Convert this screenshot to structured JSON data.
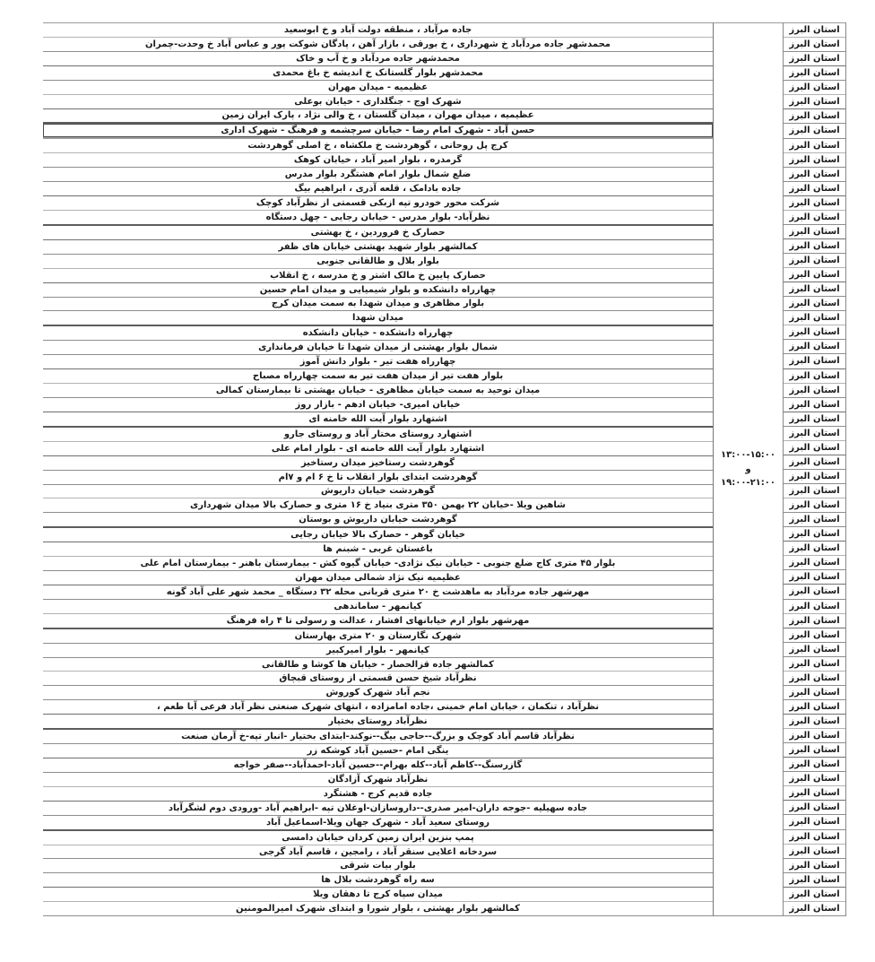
{
  "colors": {
    "text": "#1a1a1a",
    "grid": "#8d8d8d",
    "selection_border": "#4c4c4c"
  },
  "table": {
    "province_label": "استان البرز",
    "time": {
      "line1": "۱۳:۰۰-۱۵:۰۰",
      "line2": "و",
      "line3": "۱۹:۰۰-۲۱:۰۰"
    },
    "selected_row_index": 7,
    "rows": [
      "جاده مرآباد ، منطقه دولت آباد و خ ابوسعید",
      "محمدشهر جاده مردآباد خ شهرداری ، خ بورقی ، بازار آهن ، پادگان شوکت پور و عباس آباد خ وحدت-چمران",
      "محمدشهر جاده مردآباد و خ آب و خاک",
      "محمدشهر بلوار گلستانک خ اندیشه خ باغ محمدی",
      "عظیمیه - میدان مهران",
      "شهرک اوج - جنگلداری - خیابان بوعلی",
      "عظیمیه ، میدان مهران ، میدان گلستان ، خ والی نژاد ، پارک ایران زمین",
      "حسن آباد - شهرک امام رضا - خیابان سرچشمه و فرهنگ - شهرک اداری",
      "کرج پل روحانی ، گوهردشت خ ملکشاه ، خ اصلی گوهردشت",
      "گرمدره ، بلوار امیر آباد ، خیابان کوهک",
      "ضلع شمال بلوار امام هشتگرد بلوار مدرس",
      "جاده بادامک ، قلعه آذری ، ابراهیم بیگ",
      "شرکت محور خودرو تپه ازبکی قسمتی از نظرآباد کوچک",
      "نظرآباد- بلوار مدرس - خیابان رجایی - چهل دستگاه",
      "حصارک خ فروردین ، خ بهشتی",
      "کمالشهر بلوار شهید بهشتی خیابان های ظفر",
      "بلوار بلال و طالقانی جنوبی",
      "حصارک پایین خ مالک اشتر و خ مدرسه ، خ انقلاب",
      "چهارراه دانشکده و بلوار شیمیایی و میدان امام حسین",
      "بلوار مظاهری و میدان شهدا به سمت میدان کرج",
      "میدان شهدا",
      "چهارراه دانشکده - خیابان دانشکده",
      "شمال بلوار بهشتی از میدان شهدا تا خیابان فرمانداری",
      "چهارراه هفت تیر - بلوار دانش آموز",
      "بلوار هفت تیر از میدان هفت تیر به سمت چهارراه مصباح",
      "میدان توحید به سمت خیابان مظاهری - خیابان بهشتی تا بیمارستان کمالی",
      "خیابان امیری- خیابان ادهم - بازار روز",
      "اشتهارد بلوار آیت الله خامنه ای",
      "اشتهارد روستای مختار آباد و روستای جارو",
      "اشتهارد بلوار آیت الله خامنه ای - بلوار امام علی",
      "گوهردشت رستاخیز میدان رستاخیز",
      "گوهردشت ابتدای بلوار انقلاب تا خ ۶ ام و ۷ام",
      "گوهردشت خیابان داریوش",
      "شاهین ویلا -خیابان ۲۲ بهمن ۳۵۰ متری بنیاد خ ۱۶ متری و حصارک بالا میدان شهرداری",
      "گوهردشت خیابان داریوش و بوستان",
      "خیابان گوهر - حصارک بالا خیابان رجایی",
      "باغستان غربی - شبنم ها",
      "بلوار ۴۵ متری کاج ضلع جنوبی - خیابان نیک نژادی- خیابان گیوه کش - بیمارستان باهنر - بیمارستان امام علی",
      "عظیمیه  نیک نژاد شمالی میدان مهران",
      "مهرشهر جاده مردآباد به ماهدشت خ ۲۰ متری قربانی محله ۳۲ دستگاه _ محمد شهر علی آباد گونه",
      "کیانمهر - ساماندهی",
      "مهرشهر بلوار ارم خیابانهای افشار ، عدالت و رسولی تا ۴ راه فرهنگ",
      "شهرک نگارستان و ۲۰ متری بهارستان",
      "کیانمهر - بلوار امیرکبیر",
      "کمالشهر جاده قزالحصار - خیابان ها کوشا و طالقانی",
      "نظرآباد شیخ حسن قسمتی از روستای قبچاق",
      "نجم آباد شهرک کوروش",
      "نظرآباد ، تنکمان ، خیابان امام خمینی ،جاده امامزاده ، انتهای شهرک صنعتی نظر آباد فرعی آبا طعم ،",
      "نظرآباد روستای بختیار",
      "نظرآباد قاسم آباد کوچک و بزرگ--حاجی بیگ--نوکند-ابتدای بختیار -انبار تپه-خ آرمان صنعت",
      "ینگی امام -حسین آباد کوشکه زر",
      "گازرسنگ--کاظم آباد--کله بهرام--حسین آباد-احمدآباد--صفر خواجه",
      "نظرآباد شهرک آزادگان",
      "جاده قدیم کرج - هشتگرد",
      "جاده سهیلیه -جوجه داران-امیر صدری--داروسازان-اوغلان تپه -ابراهیم آباد -ورودی دوم لشگرآباد",
      "روستای سعید آباد  - شهرک جهان ویلا-اسماعیل آباد",
      "پمپ بنزین ایران زمین کردان خیابان دامسی",
      "سردخانه اعلایی سنقر آباد ، رامجین ، قاسم آباد گرجی",
      "بلوار بیات شرقی",
      "سه راه گوهردشت بلال ها",
      "میدان سپاه کرج تا دهقان ویلا",
      "کمالشهر بلوار بهشتی ، بلوار شورا و ابتدای شهرک امیرالمومنین"
    ]
  }
}
